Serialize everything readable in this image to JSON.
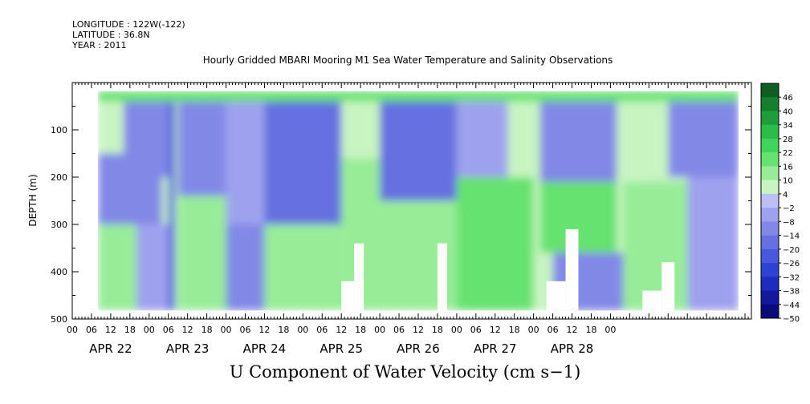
{
  "header": {
    "longitude": "LONGITUDE : 122W(-122)",
    "latitude": "LATITUDE : 36.8N",
    "year": "YEAR : 2011"
  },
  "chart_data": {
    "type": "heatmap",
    "title": "Hourly Gridded MBARI Mooring M1 Sea Water Temperature and Salinity Observations",
    "caption": "U Component of Water Velocity (cm s−1)",
    "ylabel": "DEPTH (m)",
    "ylim": [
      500,
      0
    ],
    "y_ticks": [
      100,
      200,
      300,
      400,
      500
    ],
    "y_minor_ticks": [
      50,
      150,
      250,
      350,
      450
    ],
    "x_hour_ticks": [
      "00",
      "06",
      "12",
      "18",
      "00",
      "06",
      "12",
      "18",
      "00",
      "06",
      "12",
      "18",
      "00",
      "06",
      "12",
      "18",
      "00",
      "06",
      "12",
      "18",
      "00",
      "06",
      "12",
      "18",
      "00",
      "06",
      "12",
      "18",
      "00"
    ],
    "x_day_labels": [
      "APR 22",
      "APR 23",
      "APR 24",
      "APR 25",
      "APR 26",
      "APR 27",
      "APR 28"
    ],
    "data_time_range_hours": [
      8,
      208
    ],
    "data_depth_range_m": [
      18,
      482
    ],
    "colorbar": {
      "levels": [
        -50,
        -44,
        -38,
        -32,
        -26,
        -20,
        -14,
        -8,
        -2,
        4,
        10,
        16,
        22,
        28,
        34,
        40,
        46,
        52
      ],
      "labels": [
        "46",
        "40",
        "34",
        "28",
        "22",
        "16",
        "10",
        "4",
        "−2",
        "−8",
        "−14",
        "−20",
        "−26",
        "−32",
        "−38",
        "−44",
        "−50"
      ],
      "colors": [
        "#0a0a7a",
        "#14189c",
        "#1e2cbe",
        "#2e42d4",
        "#4858dc",
        "#6670e0",
        "#8288e6",
        "#9ea2ee",
        "#bcbff5",
        "#c8f4c2",
        "#98ec98",
        "#66e270",
        "#40d45a",
        "#2cbc48",
        "#1e9e3a",
        "#167e2e",
        "#0e5e22"
      ]
    },
    "regions": [
      {
        "t": [
          8,
          16
        ],
        "d": [
          18,
          150
        ],
        "u": 8
      },
      {
        "t": [
          8,
          28
        ],
        "d": [
          150,
          300
        ],
        "u": -10
      },
      {
        "t": [
          8,
          20
        ],
        "d": [
          300,
          482
        ],
        "u": 10
      },
      {
        "t": [
          16,
          30
        ],
        "d": [
          40,
          200
        ],
        "u": -14
      },
      {
        "t": [
          20,
          30
        ],
        "d": [
          300,
          482
        ],
        "u": -8
      },
      {
        "t": [
          30,
          32
        ],
        "d": [
          40,
          482
        ],
        "u": -26
      },
      {
        "t": [
          33,
          48
        ],
        "d": [
          40,
          240
        ],
        "u": -12
      },
      {
        "t": [
          33,
          48
        ],
        "d": [
          240,
          482
        ],
        "u": 12
      },
      {
        "t": [
          48,
          60
        ],
        "d": [
          40,
          300
        ],
        "u": -6
      },
      {
        "t": [
          48,
          60
        ],
        "d": [
          300,
          482
        ],
        "u": -10
      },
      {
        "t": [
          60,
          84
        ],
        "d": [
          40,
          300
        ],
        "u": -16
      },
      {
        "t": [
          60,
          84
        ],
        "d": [
          300,
          482
        ],
        "u": 10
      },
      {
        "t": [
          84,
          96
        ],
        "d": [
          40,
          160
        ],
        "u": 8
      },
      {
        "t": [
          84,
          100
        ],
        "d": [
          160,
          482
        ],
        "u": 14
      },
      {
        "t": [
          96,
          120
        ],
        "d": [
          40,
          250
        ],
        "u": -18
      },
      {
        "t": [
          100,
          120
        ],
        "d": [
          250,
          482
        ],
        "u": 12
      },
      {
        "t": [
          120,
          136
        ],
        "d": [
          40,
          200
        ],
        "u": -6
      },
      {
        "t": [
          120,
          144
        ],
        "d": [
          200,
          482
        ],
        "u": 16
      },
      {
        "t": [
          136,
          146
        ],
        "d": [
          40,
          200
        ],
        "u": 6
      },
      {
        "t": [
          146,
          170
        ],
        "d": [
          40,
          210
        ],
        "u": -12
      },
      {
        "t": [
          146,
          170
        ],
        "d": [
          210,
          360
        ],
        "u": 16
      },
      {
        "t": [
          150,
          172
        ],
        "d": [
          360,
          482
        ],
        "u": -10
      },
      {
        "t": [
          170,
          186
        ],
        "d": [
          40,
          210
        ],
        "u": 8
      },
      {
        "t": [
          172,
          192
        ],
        "d": [
          210,
          482
        ],
        "u": 14
      },
      {
        "t": [
          186,
          208
        ],
        "d": [
          40,
          200
        ],
        "u": -12
      },
      {
        "t": [
          192,
          208
        ],
        "d": [
          200,
          482
        ],
        "u": -8
      },
      {
        "t": [
          8,
          208
        ],
        "d": [
          18,
          40
        ],
        "u": 20
      }
    ],
    "masked_regions": [
      {
        "t": [
          84,
          88
        ],
        "d": [
          420,
          482
        ]
      },
      {
        "t": [
          88,
          91
        ],
        "d": [
          340,
          482
        ]
      },
      {
        "t": [
          114,
          117
        ],
        "d": [
          340,
          482
        ]
      },
      {
        "t": [
          148,
          154
        ],
        "d": [
          420,
          482
        ]
      },
      {
        "t": [
          154,
          158
        ],
        "d": [
          310,
          482
        ]
      },
      {
        "t": [
          178,
          184
        ],
        "d": [
          440,
          482
        ]
      },
      {
        "t": [
          184,
          188
        ],
        "d": [
          380,
          482
        ]
      }
    ]
  }
}
